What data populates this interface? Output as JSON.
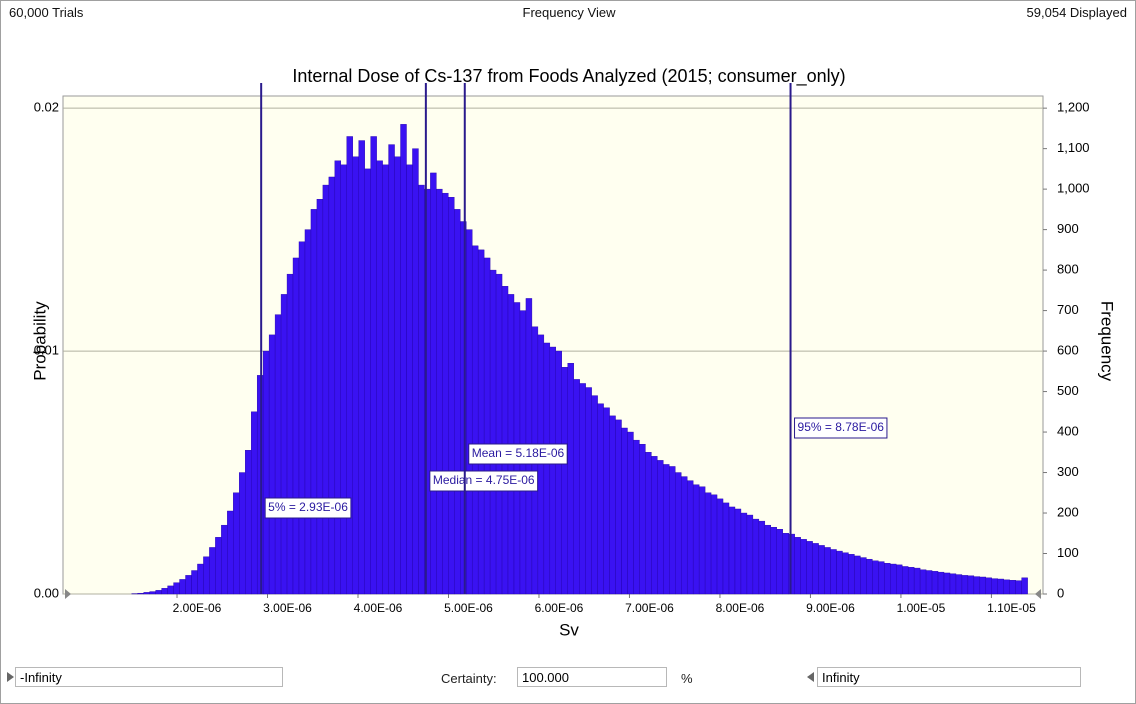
{
  "ui": {
    "header": {
      "left": "60,000 Trials",
      "center": "Frequency View",
      "right": "59,054 Displayed"
    },
    "footer": {
      "lower": "-Infinity",
      "certainty_label": "Certainty:",
      "certainty": "100.000",
      "unit": "%",
      "upper": "Infinity"
    }
  },
  "chart_data": {
    "type": "histogram",
    "title": "Internal Dose of Cs-137 from Foods Analyzed (2015; consumer_only)",
    "x_label": "Sv",
    "y_label": "Probability",
    "y2_label": "Frequency",
    "color": "#3a12f2",
    "axis": "y2",
    "grid": true,
    "bins": [
      1.5e-06,
      1.566e-06,
      1.632e-06,
      1.698e-06,
      1.764e-06,
      1.83e-06,
      1.896e-06,
      1.962e-06,
      2.028e-06,
      2.094e-06,
      2.16e-06,
      2.226e-06,
      2.292e-06,
      2.358e-06,
      2.424e-06,
      2.49e-06,
      2.556e-06,
      2.622e-06,
      2.688e-06,
      2.754e-06,
      2.82e-06,
      2.886e-06,
      2.952e-06,
      3.018e-06,
      3.084e-06,
      3.15e-06,
      3.216e-06,
      3.282e-06,
      3.348e-06,
      3.414e-06,
      3.48e-06,
      3.546e-06,
      3.612e-06,
      3.678e-06,
      3.744e-06,
      3.81e-06,
      3.876e-06,
      3.942e-06,
      4.008e-06,
      4.074e-06,
      4.14e-06,
      4.206e-06,
      4.272e-06,
      4.338e-06,
      4.404e-06,
      4.47e-06,
      4.536e-06,
      4.602e-06,
      4.668e-06,
      4.734e-06,
      4.8e-06,
      4.866e-06,
      4.932e-06,
      4.998e-06,
      5.064e-06,
      5.13e-06,
      5.196e-06,
      5.262e-06,
      5.328e-06,
      5.394e-06,
      5.46e-06,
      5.526e-06,
      5.592e-06,
      5.658e-06,
      5.724e-06,
      5.79e-06,
      5.856e-06,
      5.922e-06,
      5.988e-06,
      6.054e-06,
      6.12e-06,
      6.186e-06,
      6.252e-06,
      6.318e-06,
      6.384e-06,
      6.45e-06,
      6.516e-06,
      6.582e-06,
      6.648e-06,
      6.714e-06,
      6.78e-06,
      6.846e-06,
      6.912e-06,
      6.978e-06,
      7.044e-06,
      7.11e-06,
      7.176e-06,
      7.242e-06,
      7.308e-06,
      7.374e-06,
      7.44e-06,
      7.506e-06,
      7.572e-06,
      7.638e-06,
      7.704e-06,
      7.77e-06,
      7.836e-06,
      7.902e-06,
      7.968e-06,
      8.034e-06,
      8.1e-06,
      8.166e-06,
      8.232e-06,
      8.298e-06,
      8.364e-06,
      8.43e-06,
      8.496e-06,
      8.562e-06,
      8.628e-06,
      8.694e-06,
      8.76e-06,
      8.826e-06,
      8.892e-06,
      8.958e-06,
      9.024e-06,
      9.09e-06,
      9.156e-06,
      9.222e-06,
      9.288e-06,
      9.354e-06,
      9.42e-06,
      9.486e-06,
      9.552e-06,
      9.618e-06,
      9.684e-06,
      9.75e-06,
      9.816e-06,
      9.882e-06,
      9.948e-06,
      1.0014e-05,
      1.008e-05,
      1.0146e-05,
      1.0212e-05,
      1.0278e-05,
      1.0344e-05,
      1.041e-05,
      1.0476e-05,
      1.0542e-05,
      1.0608e-05,
      1.0674e-05,
      1.074e-05,
      1.0806e-05,
      1.0872e-05,
      1.0938e-05,
      1.1004e-05,
      1.107e-05,
      1.1136e-05,
      1.1202e-05,
      1.1268e-05,
      1.1334e-05,
      1.14e-05
    ],
    "values": [
      1,
      2,
      4,
      6,
      9,
      14,
      20,
      28,
      36,
      46,
      58,
      74,
      92,
      115,
      140,
      170,
      205,
      250,
      300,
      355,
      450,
      540,
      600,
      640,
      690,
      740,
      790,
      830,
      870,
      900,
      950,
      975,
      1010,
      1030,
      1070,
      1060,
      1130,
      1080,
      1120,
      1050,
      1130,
      1070,
      1060,
      1110,
      1080,
      1160,
      1060,
      1100,
      1010,
      1000,
      1040,
      1000,
      990,
      980,
      950,
      920,
      900,
      860,
      850,
      830,
      800,
      790,
      760,
      740,
      720,
      700,
      730,
      660,
      640,
      620,
      610,
      600,
      560,
      570,
      530,
      520,
      510,
      490,
      470,
      460,
      440,
      430,
      410,
      400,
      380,
      370,
      350,
      340,
      330,
      320,
      315,
      300,
      290,
      280,
      270,
      265,
      250,
      245,
      235,
      225,
      215,
      210,
      200,
      195,
      185,
      180,
      170,
      165,
      160,
      150,
      148,
      140,
      135,
      130,
      125,
      120,
      115,
      110,
      106,
      102,
      98,
      94,
      90,
      86,
      82,
      80,
      76,
      74,
      72,
      68,
      66,
      64,
      60,
      58,
      56,
      54,
      52,
      50,
      48,
      46,
      45,
      43,
      42,
      40,
      38,
      37,
      35,
      34,
      33,
      40
    ],
    "xlim": [
      7.4e-07,
      1.157e-05
    ],
    "xticks": [
      {
        "value": 2e-06,
        "label": "2.00E-06"
      },
      {
        "value": 3e-06,
        "label": "3.00E-06"
      },
      {
        "value": 4e-06,
        "label": "4.00E-06"
      },
      {
        "value": 5e-06,
        "label": "5.00E-06"
      },
      {
        "value": 6e-06,
        "label": "6.00E-06"
      },
      {
        "value": 7e-06,
        "label": "7.00E-06"
      },
      {
        "value": 8e-06,
        "label": "8.00E-06"
      },
      {
        "value": 9e-06,
        "label": "9.00E-06"
      },
      {
        "value": 1e-05,
        "label": "1.00E-05"
      },
      {
        "value": 1.1e-05,
        "label": "1.10E-05"
      }
    ],
    "ylim": [
      0,
      0.0205
    ],
    "yticks": [
      {
        "value": 0,
        "label": "0.00"
      },
      0.01,
      0.02
    ],
    "y2lim": [
      0,
      1230
    ],
    "y2ticks": [
      0,
      100,
      200,
      300,
      400,
      500,
      600,
      700,
      800,
      900,
      {
        "value": 1000,
        "label": "1,000"
      },
      {
        "value": 1100,
        "label": "1,100"
      },
      {
        "value": 1200,
        "label": "1,200"
      }
    ],
    "markers": [
      {
        "value": 2.93e-06,
        "label": "5% = 2.93E-06"
      },
      {
        "value": 4.75e-06,
        "label": "Median = 4.75E-06"
      },
      {
        "value": 5.18e-06,
        "label": "Mean = 5.18E-06"
      },
      {
        "value": 8.78e-06,
        "label": "95% = 8.78E-06"
      }
    ]
  }
}
